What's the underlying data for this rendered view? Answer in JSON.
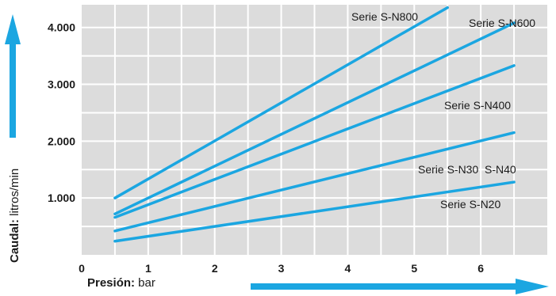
{
  "chart_data": {
    "type": "line",
    "x_axis": {
      "label_bold": "Presión:",
      "label_unit": " bar",
      "range": [
        0,
        7
      ],
      "ticks": [
        "0",
        "1",
        "2",
        "3",
        "4",
        "5",
        "6"
      ]
    },
    "y_axis": {
      "label_bold": "Caudal:",
      "label_unit": " litros/min",
      "range": [
        0,
        4400
      ],
      "ticks": [
        "1.000",
        "2.000",
        "3.000",
        "4.000"
      ],
      "tick_values": [
        1000,
        2000,
        3000,
        4000
      ]
    },
    "grid": true,
    "series": [
      {
        "name": "Serie S-N800",
        "x": [
          0.5,
          5.5
        ],
        "y": [
          1000,
          4350
        ]
      },
      {
        "name": "Serie S-N600",
        "x": [
          0.5,
          6.5
        ],
        "y": [
          720,
          4080
        ]
      },
      {
        "name": "Serie S-N400",
        "x": [
          0.5,
          6.5
        ],
        "y": [
          660,
          3330
        ]
      },
      {
        "name": "Serie S-N30  S-N40",
        "x": [
          0.5,
          6.5
        ],
        "y": [
          420,
          2150
        ]
      },
      {
        "name": "Serie S-N20",
        "x": [
          0.5,
          6.5
        ],
        "y": [
          240,
          1280
        ]
      }
    ],
    "colors": {
      "line": "#1ba6e1",
      "plot_bg": "#dcdcdc",
      "grid": "#ffffff",
      "axis_arrow": "#1ba6e1",
      "text": "#1a1a1a"
    }
  }
}
